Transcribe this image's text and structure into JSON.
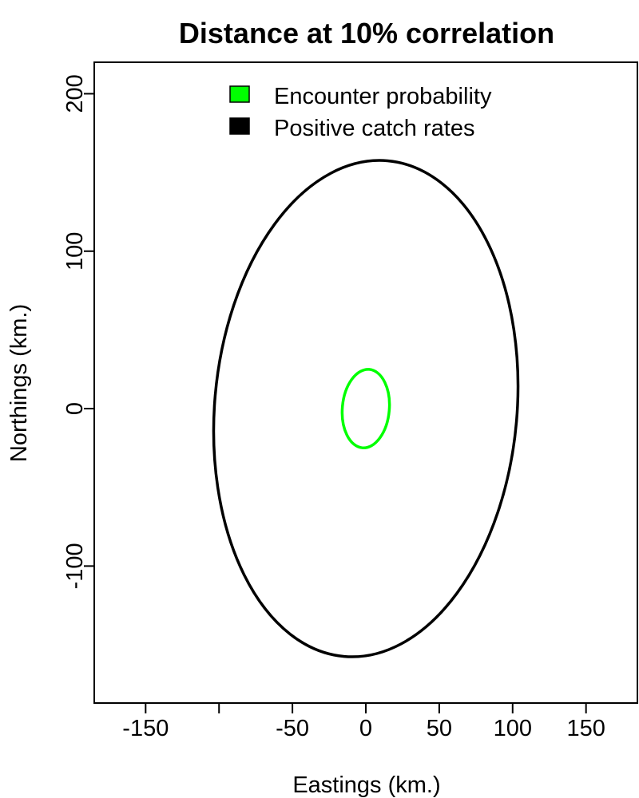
{
  "chart_data": {
    "type": "line",
    "title": "Distance at 10% correlation",
    "xlabel": "Eastings (km.)",
    "ylabel": "Northings (km.)",
    "xlim": [
      -185,
      185
    ],
    "ylim": [
      -187,
      220
    ],
    "x_ticks": [
      -150,
      -100,
      -50,
      0,
      50,
      100,
      150
    ],
    "x_tick_labels": [
      "-150",
      "",
      "-50",
      "0",
      "50",
      "100",
      "150"
    ],
    "y_ticks": [
      -100,
      0,
      100,
      200
    ],
    "y_tick_labels": [
      "-100",
      "0",
      "100",
      "200"
    ],
    "grid": false,
    "legend_position": "top-center",
    "series": [
      {
        "name": "Encounter probability",
        "color": "#00ff00",
        "shape": "ellipse",
        "center": [
          0,
          0
        ],
        "semi_axes": [
          16,
          25
        ],
        "rotation_deg": -5
      },
      {
        "name": "Positive catch rates",
        "color": "#000000",
        "shape": "ellipse",
        "center": [
          0,
          0
        ],
        "semi_axes": [
          103,
          158
        ],
        "rotation_deg": -5
      }
    ]
  }
}
